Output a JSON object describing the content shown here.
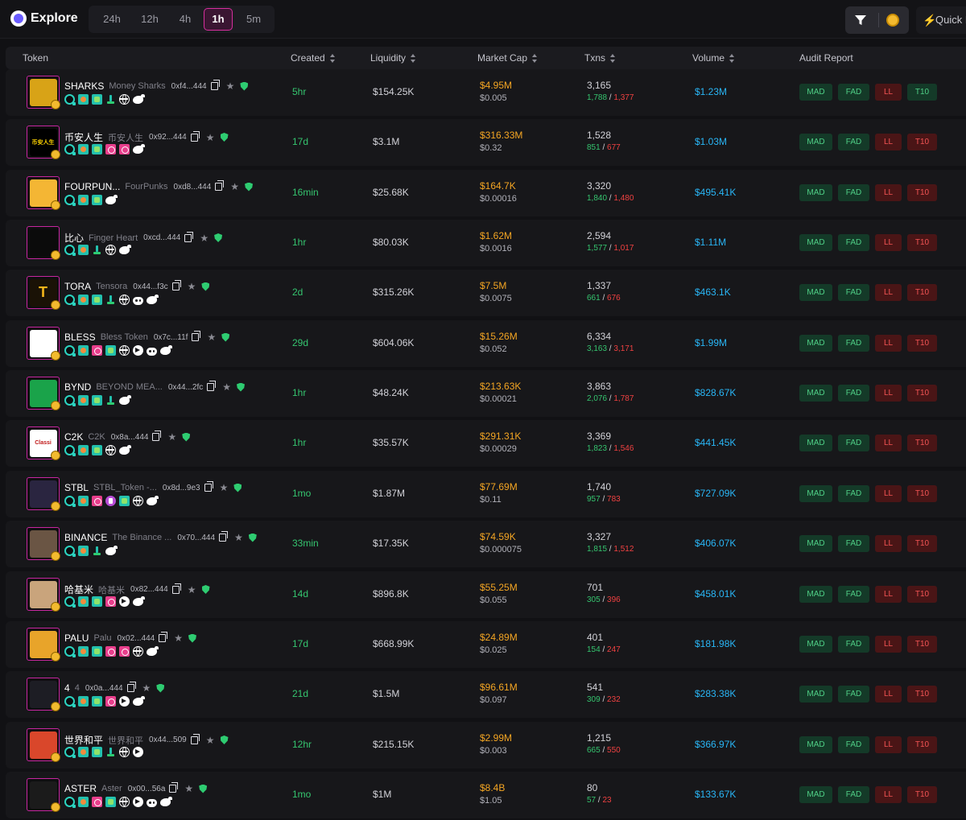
{
  "header": {
    "title": "Explore",
    "timeframes": [
      "24h",
      "12h",
      "4h",
      "1h",
      "5m"
    ],
    "active_timeframe": "1h",
    "quick_label": "Quick B"
  },
  "columns": {
    "token": "Token",
    "created": "Created",
    "liquidity": "Liquidity",
    "market_cap": "Market Cap",
    "txns": "Txns",
    "volume": "Volume",
    "audit": "Audit Report"
  },
  "audit_labels": [
    "MAD",
    "FAD",
    "LL",
    "T10"
  ],
  "colors": {
    "accent": "#d62f9d",
    "positive": "#35c56f",
    "negative": "#f04141",
    "market_cap": "#f5a623",
    "volume": "#29b6f6"
  },
  "rows": [
    {
      "symbol": "SHARKS",
      "name": "Money Sharks",
      "address": "0xf4...444",
      "icons": [
        "scan",
        "dex",
        "gecko",
        "pump",
        "web",
        "twitter"
      ],
      "created": "5hr",
      "liquidity": "$154.25K",
      "market_cap": "$4.95M",
      "price": "$0.005",
      "txns": "3,165",
      "buys": "1,788",
      "sells": "1,377",
      "volume": "$1.23M",
      "t10_status": "good",
      "avatar_color": "#d8a317",
      "avatar_text": ""
    },
    {
      "symbol": "币安人生",
      "name": "币安人生",
      "address": "0x92...444",
      "icons": [
        "scan",
        "dex",
        "gecko",
        "pink",
        "pink",
        "twitter"
      ],
      "created": "17d",
      "liquidity": "$3.1M",
      "market_cap": "$316.33M",
      "price": "$0.32",
      "txns": "1,528",
      "buys": "851",
      "sells": "677",
      "volume": "$1.03M",
      "t10_status": "bad",
      "avatar_color": "#000000",
      "avatar_text": "币安人生"
    },
    {
      "symbol": "FOURPUN...",
      "name": "FourPunks",
      "address": "0xd8...444",
      "icons": [
        "scan",
        "dex",
        "gecko",
        "twitter"
      ],
      "created": "16min",
      "liquidity": "$25.68K",
      "market_cap": "$164.7K",
      "price": "$0.00016",
      "txns": "3,320",
      "buys": "1,840",
      "sells": "1,480",
      "volume": "$495.41K",
      "t10_status": "bad",
      "avatar_color": "#f4b634",
      "avatar_text": ""
    },
    {
      "symbol": "比心",
      "name": "Finger Heart",
      "address": "0xcd...444",
      "icons": [
        "scan",
        "dex",
        "pump",
        "web",
        "twitter"
      ],
      "created": "1hr",
      "liquidity": "$80.03K",
      "market_cap": "$1.62M",
      "price": "$0.0016",
      "txns": "2,594",
      "buys": "1,577",
      "sells": "1,017",
      "volume": "$1.11M",
      "t10_status": "bad",
      "avatar_color": "#0b0b0b",
      "avatar_text": ""
    },
    {
      "symbol": "TORA",
      "name": "Tensora",
      "address": "0x44...f3c",
      "icons": [
        "scan",
        "dex",
        "gecko",
        "pump",
        "web",
        "discord",
        "twitter"
      ],
      "created": "2d",
      "liquidity": "$315.26K",
      "market_cap": "$7.5M",
      "price": "$0.0075",
      "txns": "1,337",
      "buys": "661",
      "sells": "676",
      "volume": "$463.1K",
      "t10_status": "bad",
      "avatar_color": "#1a1206",
      "avatar_text": "T"
    },
    {
      "symbol": "BLESS",
      "name": "Bless Token",
      "address": "0x7c...11f",
      "icons": [
        "scan",
        "dex",
        "pink",
        "gecko",
        "web",
        "telegram",
        "discord",
        "twitter"
      ],
      "created": "29d",
      "liquidity": "$604.06K",
      "market_cap": "$15.26M",
      "price": "$0.052",
      "txns": "6,334",
      "buys": "3,163",
      "sells": "3,171",
      "volume": "$1.99M",
      "t10_status": "bad",
      "avatar_color": "#ffffff",
      "avatar_text": ""
    },
    {
      "symbol": "BYND",
      "name": "BEYOND MEA...",
      "address": "0x44...2fc",
      "icons": [
        "scan",
        "dex",
        "gecko",
        "pump",
        "twitter"
      ],
      "created": "1hr",
      "liquidity": "$48.24K",
      "market_cap": "$213.63K",
      "price": "$0.00021",
      "txns": "3,863",
      "buys": "2,076",
      "sells": "1,787",
      "volume": "$828.67K",
      "t10_status": "bad",
      "avatar_color": "#1aa34a",
      "avatar_text": ""
    },
    {
      "symbol": "C2K",
      "name": "C2K",
      "address": "0x8a...444",
      "icons": [
        "scan",
        "dex",
        "gecko",
        "web",
        "twitter"
      ],
      "created": "1hr",
      "liquidity": "$35.57K",
      "market_cap": "$291.31K",
      "price": "$0.00029",
      "txns": "3,369",
      "buys": "1,823",
      "sells": "1,546",
      "volume": "$441.45K",
      "t10_status": "bad",
      "avatar_color": "#ffffff",
      "avatar_text": "Classi"
    },
    {
      "symbol": "STBL",
      "name": "STBL_Token -...",
      "address": "0x8d...9e3",
      "icons": [
        "scan",
        "dex",
        "pink",
        "purple",
        "gecko",
        "web",
        "twitter"
      ],
      "created": "1mo",
      "liquidity": "$1.87M",
      "market_cap": "$77.69M",
      "price": "$0.11",
      "txns": "1,740",
      "buys": "957",
      "sells": "783",
      "volume": "$727.09K",
      "t10_status": "bad",
      "avatar_color": "#2a2540",
      "avatar_text": ""
    },
    {
      "symbol": "BINANCE",
      "name": "The Binance ...",
      "address": "0x70...444",
      "icons": [
        "scan",
        "dex",
        "pump",
        "twitter"
      ],
      "created": "33min",
      "liquidity": "$17.35K",
      "market_cap": "$74.59K",
      "price": "$0.000075",
      "txns": "3,327",
      "buys": "1,815",
      "sells": "1,512",
      "volume": "$406.07K",
      "t10_status": "bad",
      "avatar_color": "#6a5544",
      "avatar_text": ""
    },
    {
      "symbol": "哈基米",
      "name": "哈基米",
      "address": "0x82...444",
      "icons": [
        "scan",
        "dex",
        "gecko",
        "pink",
        "telegram",
        "twitter"
      ],
      "created": "14d",
      "liquidity": "$896.8K",
      "market_cap": "$55.25M",
      "price": "$0.055",
      "txns": "701",
      "buys": "305",
      "sells": "396",
      "volume": "$458.01K",
      "t10_status": "bad",
      "avatar_color": "#c9a47c",
      "avatar_text": ""
    },
    {
      "symbol": "PALU",
      "name": "Palu",
      "address": "0x02...444",
      "icons": [
        "scan",
        "dex",
        "gecko",
        "pink",
        "pink",
        "web",
        "twitter"
      ],
      "created": "17d",
      "liquidity": "$668.99K",
      "market_cap": "$24.89M",
      "price": "$0.025",
      "txns": "401",
      "buys": "154",
      "sells": "247",
      "volume": "$181.98K",
      "t10_status": "bad",
      "avatar_color": "#e8a42a",
      "avatar_text": ""
    },
    {
      "symbol": "4",
      "name": "4",
      "address": "0x0a...444",
      "icons": [
        "scan",
        "dex",
        "gecko",
        "pink",
        "telegram",
        "twitter"
      ],
      "created": "21d",
      "liquidity": "$1.5M",
      "market_cap": "$96.61M",
      "price": "$0.097",
      "txns": "541",
      "buys": "309",
      "sells": "232",
      "volume": "$283.38K",
      "t10_status": "bad",
      "avatar_color": "#1d1d24",
      "avatar_text": ""
    },
    {
      "symbol": "世界和平",
      "name": "世界和平",
      "address": "0x44...509",
      "icons": [
        "scan",
        "dex",
        "gecko",
        "pump",
        "web",
        "telegram"
      ],
      "created": "12hr",
      "liquidity": "$215.15K",
      "market_cap": "$2.99M",
      "price": "$0.003",
      "txns": "1,215",
      "buys": "665",
      "sells": "550",
      "volume": "$366.97K",
      "t10_status": "bad",
      "avatar_color": "#d9472b",
      "avatar_text": ""
    },
    {
      "symbol": "ASTER",
      "name": "Aster",
      "address": "0x00...56a",
      "icons": [
        "scan",
        "dex",
        "pink",
        "gecko",
        "web",
        "telegram",
        "discord",
        "twitter"
      ],
      "created": "1mo",
      "liquidity": "$1M",
      "market_cap": "$8.4B",
      "price": "$1.05",
      "txns": "80",
      "buys": "57",
      "sells": "23",
      "volume": "$133.67K",
      "t10_status": "bad",
      "avatar_color": "#1b1b1b",
      "avatar_text": ""
    }
  ]
}
